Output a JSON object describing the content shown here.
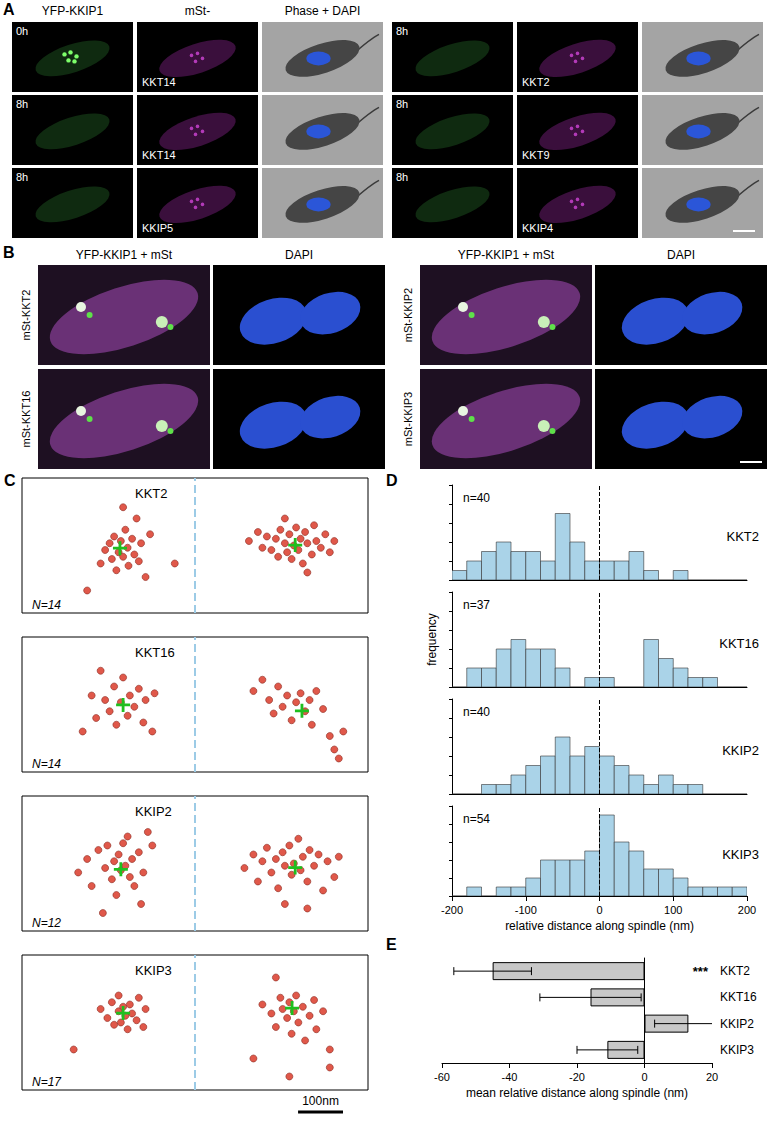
{
  "panel_labels": [
    "A",
    "B",
    "C",
    "D",
    "E"
  ],
  "panel_A": {
    "headers": [
      "YFP-KKIP1",
      "mSt-",
      "Phase + DAPI"
    ],
    "groups": [
      [
        {
          "time": "0h",
          "label": "KKT14"
        },
        {
          "time": "8h",
          "label": "KKT14"
        },
        {
          "time": "8h",
          "label": "KKIP5"
        }
      ],
      [
        {
          "time": "8h",
          "label": "KKT2"
        },
        {
          "time": "8h",
          "label": "KKT9"
        },
        {
          "time": "8h",
          "label": "KKIP4"
        }
      ]
    ]
  },
  "panel_B": {
    "headers": [
      "YFP-KKIP1 + mSt",
      "DAPI"
    ],
    "groups": [
      [
        "mSt-KKT2",
        "mSt-KKT16"
      ],
      [
        "mSt-KKIP2",
        "mSt-KKIP3"
      ]
    ]
  },
  "chart_data": [
    {
      "type": "scatter",
      "title": "KKT2",
      "annotations": [
        "N=14"
      ],
      "xlim": [
        -385,
        385
      ],
      "ylim": [
        -150,
        150
      ],
      "tick_labels": false,
      "ref_line": 0,
      "series": [
        {
          "marker": "circle",
          "color": "#e0584a",
          "values": [
            [
              -210,
              -40
            ],
            [
              -200,
              -10
            ],
            [
              -190,
              5
            ],
            [
              -185,
              -30
            ],
            [
              -180,
              20
            ],
            [
              -175,
              -55
            ],
            [
              -170,
              -15
            ],
            [
              -165,
              10
            ],
            [
              -160,
              -25
            ],
            [
              -155,
              35
            ],
            [
              -150,
              -5
            ],
            [
              -148,
              -45
            ],
            [
              -140,
              15
            ],
            [
              -135,
              -20
            ],
            [
              -130,
              60
            ],
            [
              -125,
              -35
            ],
            [
              -120,
              5
            ],
            [
              -110,
              -70
            ],
            [
              -100,
              25
            ],
            [
              -160,
              85
            ],
            [
              -45,
              -40
            ],
            [
              -240,
              -100
            ],
            [
              120,
              10
            ],
            [
              140,
              30
            ],
            [
              150,
              -5
            ],
            [
              160,
              20
            ],
            [
              170,
              -10
            ],
            [
              180,
              15
            ],
            [
              185,
              -25
            ],
            [
              190,
              35
            ],
            [
              200,
              5
            ],
            [
              205,
              -15
            ],
            [
              210,
              25
            ],
            [
              215,
              -30
            ],
            [
              220,
              0
            ],
            [
              225,
              40
            ],
            [
              230,
              -10
            ],
            [
              235,
              15
            ],
            [
              240,
              -40
            ],
            [
              245,
              30
            ],
            [
              250,
              5
            ],
            [
              260,
              -20
            ],
            [
              265,
              45
            ],
            [
              270,
              10
            ],
            [
              280,
              -5
            ],
            [
              290,
              25
            ],
            [
              300,
              -15
            ],
            [
              310,
              10
            ],
            [
              200,
              60
            ],
            [
              250,
              -60
            ]
          ]
        },
        {
          "marker": "cross",
          "color": "#1fbf1f",
          "values": [
            [
              -167,
              -6
            ],
            [
              223,
              1
            ]
          ]
        }
      ]
    },
    {
      "type": "scatter",
      "title": "KKT16",
      "annotations": [
        "N=14"
      ],
      "xlim": [
        -385,
        385
      ],
      "ylim": [
        -150,
        150
      ],
      "tick_labels": false,
      "ref_line": 0,
      "series": [
        {
          "marker": "circle",
          "color": "#e0584a",
          "values": [
            [
              -250,
              -60
            ],
            [
              -230,
              20
            ],
            [
              -220,
              -30
            ],
            [
              -210,
              75
            ],
            [
              -200,
              10
            ],
            [
              -190,
              -15
            ],
            [
              -180,
              40
            ],
            [
              -175,
              -45
            ],
            [
              -165,
              5
            ],
            [
              -160,
              60
            ],
            [
              -150,
              -25
            ],
            [
              -145,
              20
            ],
            [
              -135,
              -5
            ],
            [
              -125,
              35
            ],
            [
              -115,
              -40
            ],
            [
              -110,
              10
            ],
            [
              -95,
              -60
            ],
            [
              -90,
              25
            ],
            [
              130,
              30
            ],
            [
              150,
              55
            ],
            [
              165,
              10
            ],
            [
              175,
              -20
            ],
            [
              185,
              40
            ],
            [
              195,
              -5
            ],
            [
              205,
              20
            ],
            [
              215,
              -35
            ],
            [
              225,
              5
            ],
            [
              235,
              25
            ],
            [
              245,
              -15
            ],
            [
              255,
              10
            ],
            [
              260,
              -45
            ],
            [
              270,
              30
            ],
            [
              285,
              -10
            ],
            [
              300,
              -70
            ],
            [
              310,
              -100
            ],
            [
              320,
              -120
            ],
            [
              330,
              -60
            ]
          ]
        },
        {
          "marker": "cross",
          "color": "#1fbf1f",
          "values": [
            [
              -160,
              -1
            ],
            [
              238,
              -14
            ]
          ]
        }
      ]
    },
    {
      "type": "scatter",
      "title": "KKIP2",
      "annotations": [
        "N=12"
      ],
      "xlim": [
        -385,
        385
      ],
      "ylim": [
        -150,
        150
      ],
      "tick_labels": false,
      "ref_line": 0,
      "series": [
        {
          "marker": "circle",
          "color": "#e0584a",
          "values": [
            [
              -260,
              -20
            ],
            [
              -240,
              10
            ],
            [
              -230,
              -50
            ],
            [
              -215,
              30
            ],
            [
              -200,
              -10
            ],
            [
              -195,
              40
            ],
            [
              -185,
              -35
            ],
            [
              -180,
              5
            ],
            [
              -175,
              -70
            ],
            [
              -170,
              20
            ],
            [
              -165,
              -15
            ],
            [
              -160,
              45
            ],
            [
              -155,
              -5
            ],
            [
              -150,
              60
            ],
            [
              -145,
              -30
            ],
            [
              -140,
              10
            ],
            [
              -135,
              -50
            ],
            [
              -125,
              25
            ],
            [
              -115,
              -20
            ],
            [
              -105,
              70
            ],
            [
              -95,
              40
            ],
            [
              -120,
              -90
            ],
            [
              -205,
              -110
            ],
            [
              110,
              -10
            ],
            [
              130,
              20
            ],
            [
              140,
              -40
            ],
            [
              150,
              5
            ],
            [
              160,
              35
            ],
            [
              170,
              -20
            ],
            [
              180,
              10
            ],
            [
              185,
              -55
            ],
            [
              195,
              25
            ],
            [
              200,
              -5
            ],
            [
              210,
              40
            ],
            [
              215,
              -25
            ],
            [
              220,
              0
            ],
            [
              230,
              55
            ],
            [
              235,
              -15
            ],
            [
              240,
              15
            ],
            [
              250,
              -40
            ],
            [
              255,
              30
            ],
            [
              265,
              -5
            ],
            [
              275,
              20
            ],
            [
              285,
              -60
            ],
            [
              295,
              5
            ],
            [
              310,
              -30
            ],
            [
              320,
              15
            ],
            [
              200,
              -90
            ],
            [
              250,
              -100
            ]
          ]
        },
        {
          "marker": "cross",
          "color": "#1fbf1f",
          "values": [
            [
              -165,
              -13
            ],
            [
              223,
              -9
            ]
          ]
        }
      ]
    },
    {
      "type": "scatter",
      "title": "KKIP3",
      "annotations": [
        "N=17"
      ],
      "xlim": [
        -385,
        385
      ],
      "ylim": [
        -150,
        150
      ],
      "tick_labels": false,
      "ref_line": 0,
      "scale_bar": {
        "value": 100,
        "label": "100nm"
      },
      "series": [
        {
          "marker": "circle",
          "color": "#e0584a",
          "values": [
            [
              -270,
              -60
            ],
            [
              -210,
              30
            ],
            [
              -195,
              10
            ],
            [
              -185,
              45
            ],
            [
              -180,
              -5
            ],
            [
              -170,
              25
            ],
            [
              -165,
              0
            ],
            [
              -160,
              35
            ],
            [
              -155,
              15
            ],
            [
              -150,
              -15
            ],
            [
              -145,
              40
            ],
            [
              -140,
              20
            ],
            [
              -130,
              5
            ],
            [
              -125,
              55
            ],
            [
              -115,
              -10
            ],
            [
              -110,
              30
            ],
            [
              -170,
              60
            ],
            [
              130,
              -80
            ],
            [
              150,
              40
            ],
            [
              170,
              20
            ],
            [
              180,
              -10
            ],
            [
              190,
              55
            ],
            [
              195,
              30
            ],
            [
              205,
              10
            ],
            [
              210,
              45
            ],
            [
              215,
              -25
            ],
            [
              220,
              25
            ],
            [
              225,
              60
            ],
            [
              230,
              0
            ],
            [
              240,
              35
            ],
            [
              245,
              -40
            ],
            [
              255,
              15
            ],
            [
              265,
              50
            ],
            [
              270,
              -15
            ],
            [
              285,
              25
            ],
            [
              300,
              -60
            ],
            [
              300,
              -100
            ],
            [
              210,
              -120
            ],
            [
              180,
              100
            ]
          ]
        },
        {
          "marker": "cross",
          "color": "#1fbf1f",
          "values": [
            [
              -160,
              21
            ],
            [
              216,
              32
            ]
          ]
        }
      ]
    },
    {
      "type": "histogram",
      "title": "KKT2",
      "annotations": [
        "n=40"
      ],
      "color": "#aad3e8",
      "bins": [
        -200,
        -180,
        -160,
        -140,
        -120,
        -100,
        -80,
        -60,
        -40,
        -20,
        0,
        20,
        40,
        60,
        80,
        100,
        120,
        140,
        160,
        180,
        200
      ],
      "counts": [
        1,
        2,
        3,
        4,
        3,
        3,
        2,
        7,
        4,
        2,
        2,
        2,
        3,
        1,
        0,
        1,
        0,
        0,
        0,
        0
      ],
      "xlim": [
        -200,
        200
      ],
      "xticks": [
        -200,
        -100,
        0,
        100,
        200
      ],
      "ylim": [
        0,
        10
      ],
      "yticks": [
        0,
        2,
        4,
        6,
        8,
        10
      ],
      "tick_labels": false,
      "ref_line": 0
    },
    {
      "type": "histogram",
      "title": "KKT16",
      "annotations": [
        "n=37"
      ],
      "color": "#aad3e8",
      "ylabel": "frequency",
      "bins": [
        -200,
        -180,
        -160,
        -140,
        -120,
        -100,
        -80,
        -60,
        -40,
        -20,
        0,
        20,
        40,
        60,
        80,
        100,
        120,
        140,
        160,
        180,
        200
      ],
      "counts": [
        0,
        2,
        2,
        4,
        5,
        4,
        4,
        2,
        0,
        1,
        1,
        0,
        0,
        5,
        3,
        2,
        1,
        1,
        0,
        0
      ],
      "xlim": [
        -200,
        200
      ],
      "xticks": [
        -200,
        -100,
        0,
        100,
        200
      ],
      "ylim": [
        0,
        10
      ],
      "yticks": [
        0,
        2,
        4,
        6,
        8,
        10
      ],
      "tick_labels": false,
      "ref_line": 0
    },
    {
      "type": "histogram",
      "title": "KKIP2",
      "annotations": [
        "n=40"
      ],
      "color": "#aad3e8",
      "bins": [
        -200,
        -180,
        -160,
        -140,
        -120,
        -100,
        -80,
        -60,
        -40,
        -20,
        0,
        20,
        40,
        60,
        80,
        100,
        120,
        140,
        160,
        180,
        200
      ],
      "counts": [
        0,
        0,
        1,
        1,
        2,
        3,
        4,
        6,
        4,
        5,
        4,
        3,
        2,
        1,
        2,
        1,
        1,
        0,
        0,
        0
      ],
      "xlim": [
        -200,
        200
      ],
      "xticks": [
        -200,
        -100,
        0,
        100,
        200
      ],
      "ylim": [
        0,
        10
      ],
      "yticks": [
        0,
        2,
        4,
        6,
        8,
        10
      ],
      "tick_labels": false,
      "ref_line": 0
    },
    {
      "type": "histogram",
      "title": "KKIP3",
      "annotations": [
        "n=54"
      ],
      "color": "#aad3e8",
      "xlabel": "relative distance along spindle (nm)",
      "bins": [
        -200,
        -180,
        -160,
        -140,
        -120,
        -100,
        -80,
        -60,
        -40,
        -20,
        0,
        20,
        40,
        60,
        80,
        100,
        120,
        140,
        160,
        180,
        200
      ],
      "counts": [
        0,
        1,
        0,
        1,
        1,
        2,
        4,
        4,
        4,
        5,
        9,
        6,
        5,
        3,
        3,
        2,
        1,
        1,
        1,
        1
      ],
      "xlim": [
        -200,
        200
      ],
      "xticks": [
        -200,
        -100,
        0,
        100,
        200
      ],
      "ylim": [
        0,
        10
      ],
      "yticks": [
        0,
        2,
        4,
        6,
        8,
        10
      ],
      "tick_labels": "x",
      "ref_line": 0
    },
    {
      "type": "bar",
      "orientation": "horizontal",
      "color": "#c8c8c8",
      "categories": [
        "KKT2",
        "KKT16",
        "KKIP2",
        "KKIP3"
      ],
      "values": [
        -45,
        -16,
        13,
        -11
      ],
      "errors": [
        11.5,
        15,
        10,
        9
      ],
      "significance": [
        "***",
        null,
        null,
        null
      ],
      "xlim": [
        -60,
        20
      ],
      "xticks": [
        -60,
        -40,
        -20,
        0,
        20
      ],
      "xlabel": "mean relative distance along spindle (nm)"
    }
  ]
}
